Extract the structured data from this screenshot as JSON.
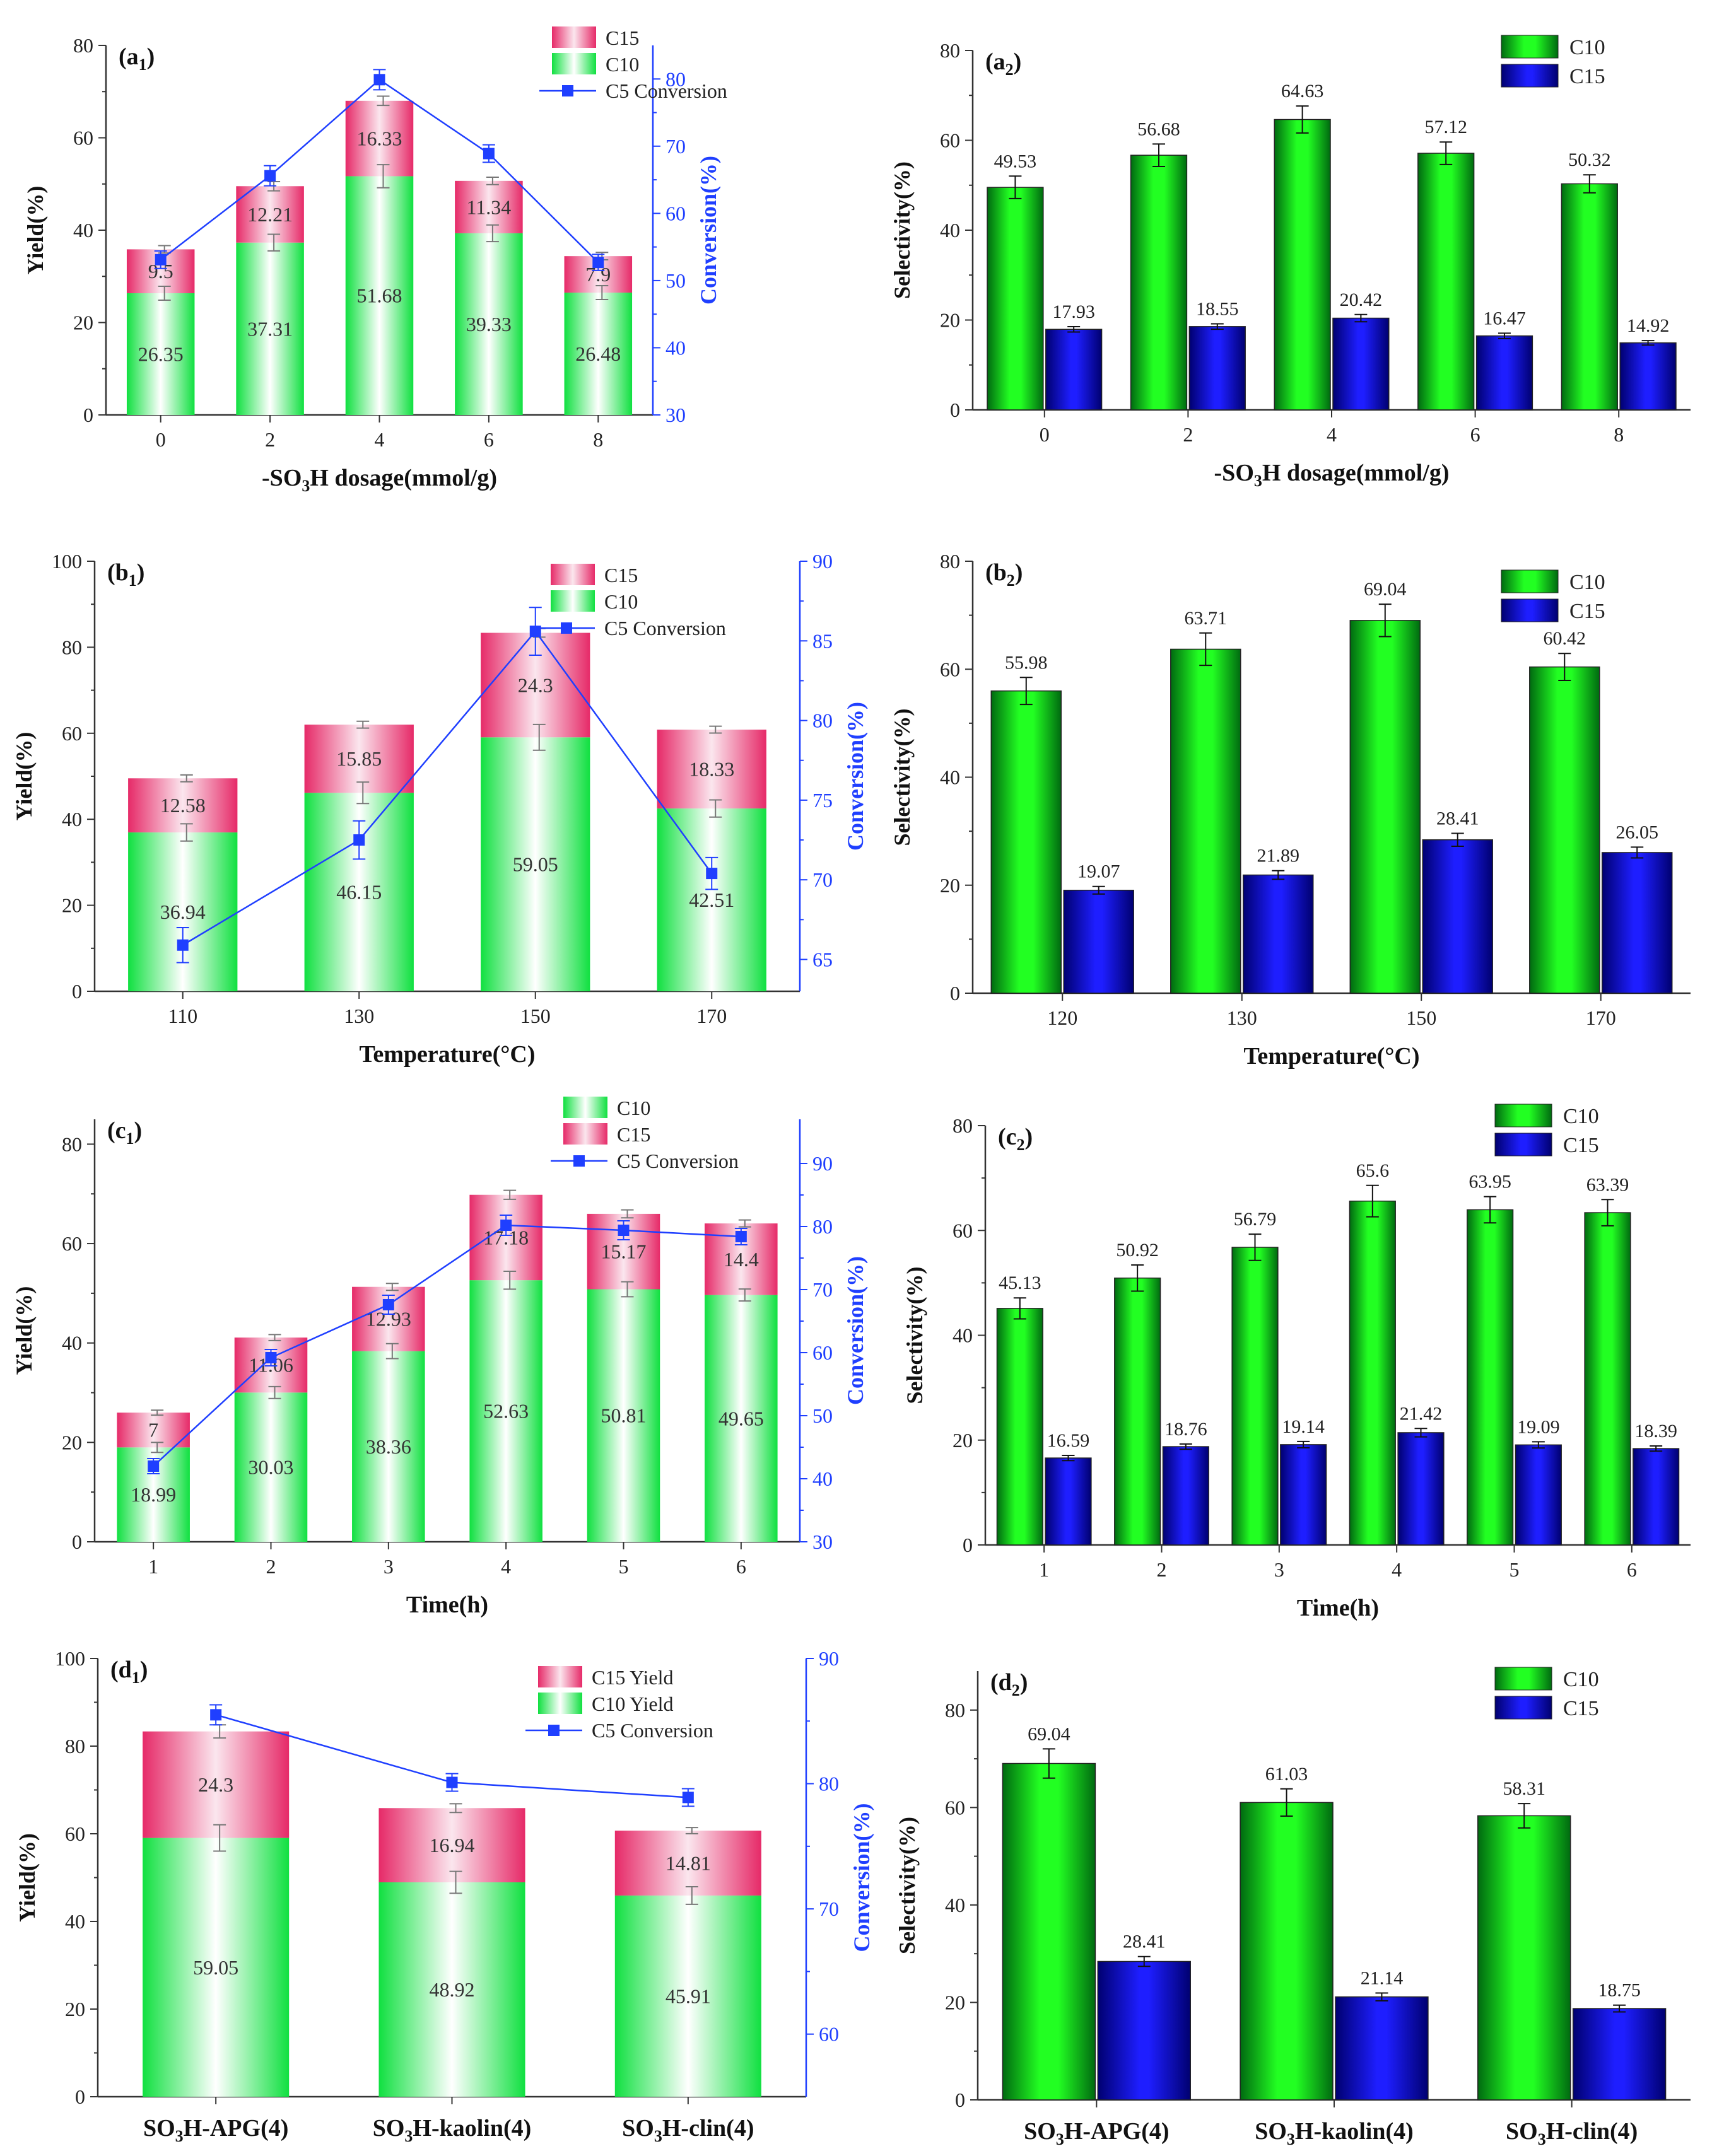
{
  "colors": {
    "green": "#00dd3a",
    "pink": "#e8336e",
    "blue": "#1010e0",
    "dark_green": "#006600",
    "dark_blue": "#00007a",
    "axis": "#333333",
    "conv": "#1f3fff"
  },
  "chart_data": [
    {
      "id": "a1",
      "type": "bar",
      "stacked": true,
      "panel_label": "(a",
      "panel_sub": "1",
      "panel_close": ")",
      "categories": [
        "0",
        "2",
        "4",
        "6",
        "8"
      ],
      "xlabel_parts": [
        [
          "-SO",
          ""
        ],
        [
          "3",
          "sub"
        ],
        [
          "H dosage(mmol/g)",
          ""
        ]
      ],
      "ylabel": "Yield(%)",
      "ylim": [
        0,
        80
      ],
      "yticks": [
        "0",
        "20",
        "40",
        "60",
        "80"
      ],
      "y2label": "Conversion(%)",
      "y2lim": [
        30,
        85
      ],
      "y2ticks": [
        "30",
        "40",
        "50",
        "60",
        "70",
        "80"
      ],
      "series": [
        {
          "name": "C10",
          "values": [
            26.35,
            37.31,
            51.68,
            39.33,
            26.48
          ],
          "labels": [
            "26.35",
            "37.31",
            "51.68",
            "39.33",
            "26.48"
          ],
          "errors": [
            1.5,
            1.8,
            2.5,
            1.8,
            1.5
          ]
        },
        {
          "name": "C15",
          "values": [
            9.5,
            12.21,
            16.33,
            11.34,
            7.9
          ],
          "labels": [
            "9.5",
            "12.21",
            "16.33",
            "11.34",
            "7.9"
          ],
          "errors": [
            0.8,
            1.0,
            1.0,
            0.8,
            0.8
          ]
        }
      ],
      "conversion": {
        "name": "C5 Conversion",
        "values": [
          53.1,
          65.6,
          79.9,
          68.9,
          52.7
        ],
        "errors": [
          1.3,
          1.5,
          1.5,
          1.3,
          1.2
        ]
      },
      "legend": [
        "C15",
        "C10",
        "C5 Conversion"
      ],
      "legend_order": [
        "pink",
        "green",
        "line"
      ]
    },
    {
      "id": "a2",
      "type": "bar",
      "stacked": false,
      "panel_label": "(a",
      "panel_sub": "2",
      "panel_close": ")",
      "categories": [
        "0",
        "2",
        "4",
        "6",
        "8"
      ],
      "xlabel_parts": [
        [
          "-SO",
          ""
        ],
        [
          "3",
          "sub"
        ],
        [
          "H dosage(mmol/g)",
          ""
        ]
      ],
      "ylabel": "Selectivity(%)",
      "ylim": [
        0,
        80
      ],
      "yticks": [
        "0",
        "20",
        "40",
        "60",
        "80"
      ],
      "series": [
        {
          "name": "C10",
          "values": [
            49.53,
            56.68,
            64.63,
            57.12,
            50.32
          ],
          "labels": [
            "49.53",
            "56.68",
            "64.63",
            "57.12",
            "50.32"
          ],
          "errors": [
            2.5,
            2.5,
            3.0,
            2.5,
            2.0
          ]
        },
        {
          "name": "C15",
          "values": [
            17.93,
            18.55,
            20.42,
            16.47,
            14.92
          ],
          "labels": [
            "17.93",
            "18.55",
            "20.42",
            "16.47",
            "14.92"
          ],
          "errors": [
            0.6,
            0.6,
            0.8,
            0.6,
            0.5
          ]
        }
      ],
      "legend": [
        "C10",
        "C15"
      ]
    },
    {
      "id": "b1",
      "type": "bar",
      "stacked": true,
      "panel_label": "(b",
      "panel_sub": "1",
      "panel_close": ")",
      "categories": [
        "110",
        "130",
        "150",
        "170"
      ],
      "xlabel_parts": [
        [
          "Temperature(°C)",
          ""
        ]
      ],
      "ylabel": "Yield(%)",
      "ylim": [
        0,
        100
      ],
      "yticks": [
        "0",
        "20",
        "40",
        "60",
        "80",
        "100"
      ],
      "y2label": "Conversion(%)",
      "y2lim": [
        63,
        90
      ],
      "y2ticks": [
        "65",
        "70",
        "75",
        "80",
        "85",
        "90"
      ],
      "series": [
        {
          "name": "C10",
          "values": [
            36.94,
            46.15,
            59.05,
            42.51
          ],
          "labels": [
            "36.94",
            "46.15",
            "59.05",
            "42.51"
          ],
          "errors": [
            2.0,
            2.5,
            3.0,
            2.0
          ]
        },
        {
          "name": "C15",
          "values": [
            12.58,
            15.85,
            24.3,
            18.33
          ],
          "labels": [
            "12.58",
            "15.85",
            "24.3",
            "18.33"
          ],
          "errors": [
            0.8,
            0.8,
            1.0,
            0.8
          ]
        }
      ],
      "conversion": {
        "name": "C5 Conversion",
        "values": [
          65.9,
          72.5,
          85.6,
          70.4
        ],
        "errors": [
          1.1,
          1.2,
          1.5,
          1.0
        ]
      },
      "legend": [
        "C15",
        "C10",
        "C5 Conversion"
      ],
      "legend_order": [
        "pink",
        "green",
        "line"
      ]
    },
    {
      "id": "b2",
      "type": "bar",
      "stacked": false,
      "panel_label": "(b",
      "panel_sub": "2",
      "panel_close": ")",
      "categories": [
        "120",
        "130",
        "150",
        "170"
      ],
      "xlabel_parts": [
        [
          "Temperature(°C)",
          ""
        ]
      ],
      "ylabel": "Selectivity(%)",
      "ylim": [
        0,
        80
      ],
      "yticks": [
        "0",
        "20",
        "40",
        "60",
        "80"
      ],
      "series": [
        {
          "name": "C10",
          "values": [
            55.98,
            63.71,
            69.04,
            60.42
          ],
          "labels": [
            "55.98",
            "63.71",
            "69.04",
            "60.42"
          ],
          "errors": [
            2.5,
            3.0,
            3.0,
            2.5
          ]
        },
        {
          "name": "C15",
          "values": [
            19.07,
            21.89,
            28.41,
            26.05
          ],
          "labels": [
            "19.07",
            "21.89",
            "28.41",
            "26.05"
          ],
          "errors": [
            0.7,
            0.8,
            1.2,
            1.0
          ]
        }
      ],
      "legend": [
        "C10",
        "C15"
      ]
    },
    {
      "id": "c1",
      "type": "bar",
      "stacked": true,
      "panel_label": "(c",
      "panel_sub": "1",
      "panel_close": ")",
      "categories": [
        "1",
        "2",
        "3",
        "4",
        "5",
        "6"
      ],
      "xlabel_parts": [
        [
          "Time(h)",
          ""
        ]
      ],
      "ylabel": "Yield(%)",
      "ylim": [
        0,
        85
      ],
      "yticks": [
        "0",
        "20",
        "40",
        "60",
        "80"
      ],
      "y2label": "Conversion(%)",
      "y2lim": [
        30,
        97
      ],
      "y2ticks": [
        "30",
        "40",
        "50",
        "60",
        "70",
        "80",
        "90"
      ],
      "series": [
        {
          "name": "C10",
          "values": [
            18.99,
            30.03,
            38.36,
            52.63,
            50.81,
            49.65
          ],
          "labels": [
            "18.99",
            "30.03",
            "38.36",
            "52.63",
            "50.81",
            "49.65"
          ],
          "errors": [
            1.0,
            1.2,
            1.5,
            1.8,
            1.5,
            1.2
          ]
        },
        {
          "name": "C15",
          "values": [
            7,
            11.06,
            12.93,
            17.18,
            15.17,
            14.4
          ],
          "labels": [
            "7",
            "11.06",
            "12.93",
            "17.18",
            "15.17",
            "14.4"
          ],
          "errors": [
            0.5,
            0.6,
            0.7,
            0.9,
            0.8,
            0.7
          ]
        }
      ],
      "conversion": {
        "name": "C5 Conversion",
        "values": [
          42.0,
          59.2,
          67.6,
          80.2,
          79.4,
          78.4
        ],
        "errors": [
          1.2,
          1.3,
          1.5,
          1.6,
          1.5,
          1.3
        ]
      },
      "legend": [
        "C10",
        "C15",
        "C5 Conversion"
      ],
      "legend_order": [
        "green",
        "pink",
        "line"
      ]
    },
    {
      "id": "c2",
      "type": "bar",
      "stacked": false,
      "panel_label": "(c",
      "panel_sub": "2",
      "panel_close": ")",
      "categories": [
        "1",
        "2",
        "3",
        "4",
        "5",
        "6"
      ],
      "xlabel_parts": [
        [
          "Time(h)",
          ""
        ]
      ],
      "ylabel": "Selectivity(%)",
      "ylim": [
        0,
        80
      ],
      "yticks": [
        "0",
        "20",
        "40",
        "60",
        "80"
      ],
      "series": [
        {
          "name": "C10",
          "values": [
            45.13,
            50.92,
            56.79,
            65.6,
            63.95,
            63.39
          ],
          "labels": [
            "45.13",
            "50.92",
            "56.79",
            "65.6",
            "63.95",
            "63.39"
          ],
          "errors": [
            2.0,
            2.5,
            2.5,
            3.0,
            2.5,
            2.5
          ]
        },
        {
          "name": "C15",
          "values": [
            16.59,
            18.76,
            19.14,
            21.42,
            19.09,
            18.39
          ],
          "labels": [
            "16.59",
            "18.76",
            "19.14",
            "21.42",
            "19.09",
            "18.39"
          ],
          "errors": [
            0.5,
            0.5,
            0.6,
            0.8,
            0.6,
            0.5
          ]
        }
      ],
      "legend": [
        "C10",
        "C15"
      ]
    },
    {
      "id": "d1",
      "type": "bar",
      "stacked": true,
      "panel_label": "(d",
      "panel_sub": "1",
      "panel_close": ")",
      "categories": [
        [
          [
            "SO",
            ""
          ],
          [
            "3",
            "sub"
          ],
          [
            "H-APG(4)",
            ""
          ]
        ],
        [
          [
            "SO",
            ""
          ],
          [
            "3",
            "sub"
          ],
          [
            "H-kaolin(4)",
            ""
          ]
        ],
        [
          [
            "SO",
            ""
          ],
          [
            "3",
            "sub"
          ],
          [
            "H-clin(4)",
            ""
          ]
        ]
      ],
      "xlabel_parts": [],
      "ylabel": "Yield(%)",
      "ylim": [
        0,
        100
      ],
      "yticks": [
        "0",
        "20",
        "40",
        "60",
        "80",
        "100"
      ],
      "y2label": "Conversion(%)",
      "y2lim": [
        55,
        90
      ],
      "y2ticks": [
        "60",
        "70",
        "80",
        "90"
      ],
      "series": [
        {
          "name": "C10 Yield",
          "values": [
            59.05,
            48.92,
            45.91
          ],
          "labels": [
            "59.05",
            "48.92",
            "45.91"
          ],
          "errors": [
            3.0,
            2.5,
            2.0
          ]
        },
        {
          "name": "C15 Yield",
          "values": [
            24.3,
            16.94,
            14.81
          ],
          "labels": [
            "24.3",
            "16.94",
            "14.81"
          ],
          "errors": [
            1.5,
            1.0,
            0.7
          ]
        }
      ],
      "conversion": {
        "name": "C5 Conversion",
        "values": [
          85.5,
          80.1,
          78.9
        ],
        "errors": [
          0.8,
          0.7,
          0.7
        ]
      },
      "legend": [
        "C15 Yield",
        "C10 Yield",
        "C5 Conversion"
      ],
      "legend_order": [
        "pink",
        "green",
        "line"
      ]
    },
    {
      "id": "d2",
      "type": "bar",
      "stacked": false,
      "panel_label": "(d",
      "panel_sub": "2",
      "panel_close": ")",
      "categories": [
        [
          [
            "SO",
            ""
          ],
          [
            "3",
            "sub"
          ],
          [
            "H-APG(4)",
            ""
          ]
        ],
        [
          [
            "SO",
            ""
          ],
          [
            "3",
            "sub"
          ],
          [
            "H-kaolin(4)",
            ""
          ]
        ],
        [
          [
            "SO",
            ""
          ],
          [
            "3",
            "sub"
          ],
          [
            "H-clin(4)",
            ""
          ]
        ]
      ],
      "xlabel_parts": [],
      "ylabel": "Selectivity(%)",
      "ylim": [
        0,
        88
      ],
      "yticks": [
        "0",
        "20",
        "40",
        "60",
        "80"
      ],
      "series": [
        {
          "name": "C10",
          "values": [
            69.04,
            61.03,
            58.31
          ],
          "labels": [
            "69.04",
            "61.03",
            "58.31"
          ],
          "errors": [
            3.0,
            2.8,
            2.5
          ]
        },
        {
          "name": "C15",
          "values": [
            28.41,
            21.14,
            18.75
          ],
          "labels": [
            "28.41",
            "21.14",
            "18.75"
          ],
          "errors": [
            1.0,
            0.8,
            0.7
          ]
        }
      ],
      "legend": [
        "C10",
        "C15"
      ]
    }
  ]
}
